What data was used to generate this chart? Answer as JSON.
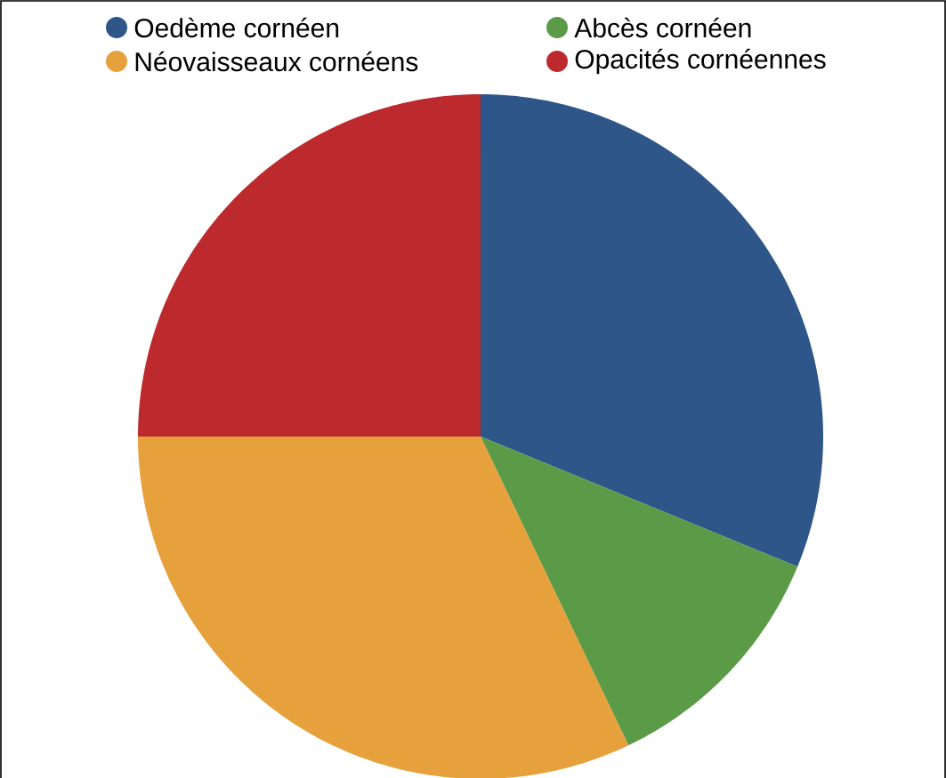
{
  "chart_data": {
    "type": "pie",
    "categories": [
      "Oedème cornéen",
      "Abcès cornéen",
      "Néovaisseaux cornéens",
      "Opacités cornéennes"
    ],
    "values": [
      31.2,
      11.7,
      32.1,
      25.0
    ],
    "colors": [
      "#2e5689",
      "#5b9a46",
      "#e6a03c",
      "#bd2a2e"
    ],
    "legend": "top"
  }
}
